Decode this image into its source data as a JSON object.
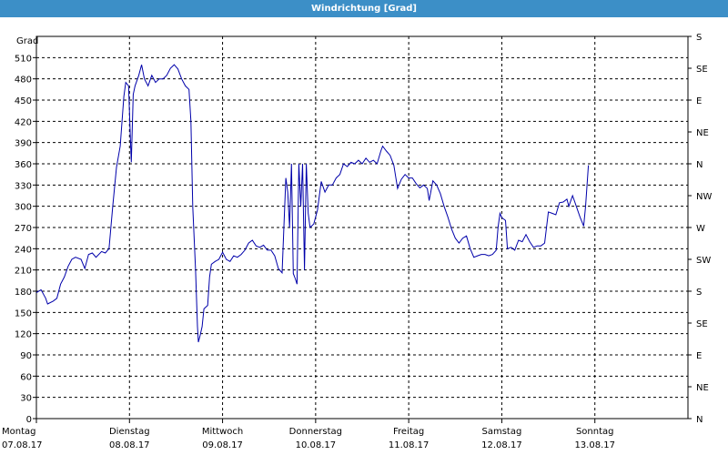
{
  "window": {
    "title": "Windrichtung [Grad]"
  },
  "colors": {
    "titlebar": "#3c8fc7",
    "line": "#0000aa",
    "grid": "#000000"
  },
  "chart_data": {
    "type": "line",
    "title": "Windrichtung [Grad]",
    "ylabel": "Grad",
    "ylim": [
      0,
      540
    ],
    "y_ticks": [
      0,
      30,
      60,
      90,
      120,
      150,
      180,
      210,
      240,
      270,
      300,
      330,
      360,
      390,
      420,
      450,
      480,
      510
    ],
    "right_ticks": [
      {
        "value": 0,
        "label": "N"
      },
      {
        "value": 45,
        "label": "NE"
      },
      {
        "value": 90,
        "label": "E"
      },
      {
        "value": 135,
        "label": "SE"
      },
      {
        "value": 180,
        "label": "S"
      },
      {
        "value": 225,
        "label": "SW"
      },
      {
        "value": 270,
        "label": "W"
      },
      {
        "value": 315,
        "label": "NW"
      },
      {
        "value": 360,
        "label": "N"
      },
      {
        "value": 405,
        "label": "NE"
      },
      {
        "value": 450,
        "label": "E"
      },
      {
        "value": 495,
        "label": "SE"
      },
      {
        "value": 540,
        "label": "S"
      }
    ],
    "x_range": [
      0,
      7
    ],
    "x_ticks": [
      {
        "pos": 0,
        "day": "Montag",
        "date": "07.08.17"
      },
      {
        "pos": 1,
        "day": "Dienstag",
        "date": "08.08.17"
      },
      {
        "pos": 2,
        "day": "Mittwoch",
        "date": "09.08.17"
      },
      {
        "pos": 3,
        "day": "Donnerstag",
        "date": "10.08.17"
      },
      {
        "pos": 4,
        "day": "Freitag",
        "date": "11.08.17"
      },
      {
        "pos": 5,
        "day": "Samstag",
        "date": "12.08.17"
      },
      {
        "pos": 6,
        "day": "Sonntag",
        "date": "13.08.17"
      }
    ],
    "grid": true,
    "series": [
      {
        "points": [
          [
            0.0,
            178
          ],
          [
            0.05,
            182
          ],
          [
            0.1,
            170
          ],
          [
            0.12,
            162
          ],
          [
            0.18,
            166
          ],
          [
            0.22,
            170
          ],
          [
            0.26,
            190
          ],
          [
            0.3,
            200
          ],
          [
            0.34,
            215
          ],
          [
            0.38,
            225
          ],
          [
            0.42,
            228
          ],
          [
            0.48,
            225
          ],
          [
            0.52,
            212
          ],
          [
            0.56,
            232
          ],
          [
            0.6,
            234
          ],
          [
            0.64,
            228
          ],
          [
            0.7,
            236
          ],
          [
            0.74,
            234
          ],
          [
            0.78,
            240
          ],
          [
            0.82,
            300
          ],
          [
            0.86,
            355
          ],
          [
            0.9,
            385
          ],
          [
            0.94,
            455
          ],
          [
            0.96,
            475
          ],
          [
            0.99,
            470
          ],
          [
            1.01,
            395
          ],
          [
            1.02,
            362
          ],
          [
            1.04,
            458
          ],
          [
            1.06,
            470
          ],
          [
            1.1,
            485
          ],
          [
            1.13,
            500
          ],
          [
            1.16,
            480
          ],
          [
            1.2,
            470
          ],
          [
            1.24,
            485
          ],
          [
            1.28,
            475
          ],
          [
            1.32,
            480
          ],
          [
            1.36,
            480
          ],
          [
            1.4,
            485
          ],
          [
            1.44,
            495
          ],
          [
            1.48,
            500
          ],
          [
            1.52,
            494
          ],
          [
            1.56,
            480
          ],
          [
            1.6,
            470
          ],
          [
            1.64,
            465
          ],
          [
            1.66,
            420
          ],
          [
            1.68,
            300
          ],
          [
            1.71,
            210
          ],
          [
            1.73,
            130
          ],
          [
            1.74,
            108
          ],
          [
            1.76,
            118
          ],
          [
            1.78,
            130
          ],
          [
            1.8,
            155
          ],
          [
            1.84,
            160
          ],
          [
            1.86,
            200
          ],
          [
            1.88,
            218
          ],
          [
            1.92,
            222
          ],
          [
            1.96,
            225
          ],
          [
            2.0,
            235
          ],
          [
            2.04,
            225
          ],
          [
            2.08,
            222
          ],
          [
            2.12,
            230
          ],
          [
            2.16,
            228
          ],
          [
            2.2,
            232
          ],
          [
            2.24,
            238
          ],
          [
            2.28,
            248
          ],
          [
            2.32,
            252
          ],
          [
            2.36,
            244
          ],
          [
            2.4,
            242
          ],
          [
            2.44,
            245
          ],
          [
            2.48,
            238
          ],
          [
            2.52,
            238
          ],
          [
            2.56,
            230
          ],
          [
            2.6,
            212
          ],
          [
            2.64,
            206
          ],
          [
            2.68,
            340
          ],
          [
            2.7,
            320
          ],
          [
            2.72,
            270
          ],
          [
            2.74,
            360
          ],
          [
            2.76,
            205
          ],
          [
            2.78,
            198
          ],
          [
            2.8,
            190
          ],
          [
            2.82,
            360
          ],
          [
            2.84,
            300
          ],
          [
            2.86,
            360
          ],
          [
            2.88,
            210
          ],
          [
            2.9,
            360
          ],
          [
            2.92,
            290
          ],
          [
            2.94,
            270
          ],
          [
            2.98,
            275
          ],
          [
            3.02,
            295
          ],
          [
            3.06,
            335
          ],
          [
            3.1,
            320
          ],
          [
            3.14,
            330
          ],
          [
            3.18,
            330
          ],
          [
            3.22,
            340
          ],
          [
            3.26,
            345
          ],
          [
            3.3,
            360
          ],
          [
            3.34,
            356
          ],
          [
            3.38,
            362
          ],
          [
            3.42,
            360
          ],
          [
            3.46,
            365
          ],
          [
            3.5,
            360
          ],
          [
            3.54,
            368
          ],
          [
            3.58,
            362
          ],
          [
            3.62,
            365
          ],
          [
            3.66,
            360
          ],
          [
            3.7,
            378
          ],
          [
            3.72,
            385
          ],
          [
            3.76,
            378
          ],
          [
            3.8,
            372
          ],
          [
            3.84,
            358
          ],
          [
            3.88,
            325
          ],
          [
            3.92,
            338
          ],
          [
            3.96,
            345
          ],
          [
            4.0,
            340
          ],
          [
            4.04,
            340
          ],
          [
            4.08,
            332
          ],
          [
            4.12,
            326
          ],
          [
            4.16,
            330
          ],
          [
            4.2,
            325
          ],
          [
            4.22,
            308
          ],
          [
            4.26,
            336
          ],
          [
            4.3,
            330
          ],
          [
            4.34,
            318
          ],
          [
            4.38,
            300
          ],
          [
            4.42,
            285
          ],
          [
            4.46,
            268
          ],
          [
            4.5,
            255
          ],
          [
            4.54,
            248
          ],
          [
            4.58,
            255
          ],
          [
            4.62,
            258
          ],
          [
            4.66,
            240
          ],
          [
            4.7,
            228
          ],
          [
            4.74,
            230
          ],
          [
            4.78,
            232
          ],
          [
            4.82,
            232
          ],
          [
            4.86,
            230
          ],
          [
            4.9,
            232
          ],
          [
            4.94,
            238
          ],
          [
            4.96,
            270
          ],
          [
            4.98,
            290
          ],
          [
            5.0,
            284
          ],
          [
            5.04,
            280
          ],
          [
            5.06,
            240
          ],
          [
            5.1,
            242
          ],
          [
            5.14,
            238
          ],
          [
            5.18,
            252
          ],
          [
            5.22,
            250
          ],
          [
            5.26,
            260
          ],
          [
            5.3,
            250
          ],
          [
            5.34,
            242
          ],
          [
            5.38,
            244
          ],
          [
            5.42,
            244
          ],
          [
            5.46,
            248
          ],
          [
            5.5,
            292
          ],
          [
            5.54,
            290
          ],
          [
            5.58,
            288
          ],
          [
            5.62,
            305
          ],
          [
            5.66,
            306
          ],
          [
            5.7,
            310
          ],
          [
            5.72,
            300
          ],
          [
            5.76,
            315
          ],
          [
            5.8,
            300
          ],
          [
            5.84,
            285
          ],
          [
            5.88,
            272
          ],
          [
            5.9,
            300
          ],
          [
            5.93,
            358
          ]
        ]
      }
    ]
  }
}
